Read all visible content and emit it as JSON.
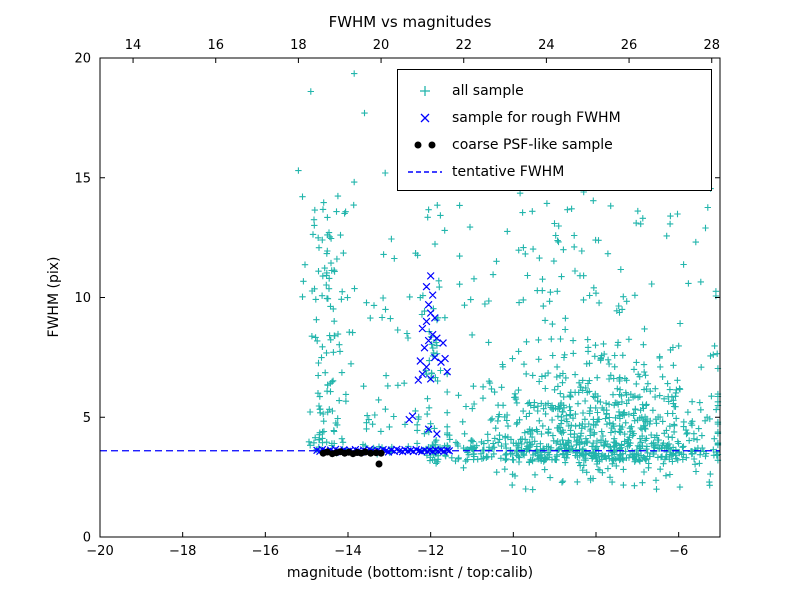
{
  "chart_data": {
    "type": "scatter",
    "title": "FWHM vs magnitudes",
    "xlabel": "magnitude (bottom:isnt / top:calib)",
    "ylabel": "FWHM (pix)",
    "xlim": [
      -20,
      -5
    ],
    "ylim": [
      0,
      20
    ],
    "x_ticks": [
      -20,
      -18,
      -16,
      -14,
      -12,
      -10,
      -8,
      -6
    ],
    "x_tick_labels": [
      "−20",
      "−18",
      "−16",
      "−14",
      "−12",
      "−10",
      "−8",
      "−6"
    ],
    "y_ticks": [
      0,
      5,
      10,
      15,
      20
    ],
    "y_tick_labels": [
      "0",
      "5",
      "10",
      "15",
      "20"
    ],
    "top_axis": {
      "lim": [
        13.2,
        28.2
      ],
      "ticks": [
        14,
        16,
        18,
        20,
        22,
        24,
        26,
        28
      ],
      "tick_labels": [
        "14",
        "16",
        "18",
        "20",
        "22",
        "24",
        "26",
        "28"
      ]
    },
    "legend_position": "upper right",
    "grid": false,
    "series": [
      {
        "name": "all sample",
        "marker": "plus",
        "color": "#22b5ac",
        "clusters": [
          {
            "n": 75,
            "x": {
              "type": "gauss",
              "mean": -14.55,
              "sd": 0.18,
              "min": -15.05,
              "max": -14.05
            },
            "y": {
              "type": "uniform",
              "min": 3.9,
              "max": 14.3,
              "bias": 1.4
            }
          },
          {
            "n": 22,
            "x": {
              "type": "gauss",
              "mean": -14.25,
              "sd": 0.5,
              "min": -15.1,
              "max": -13.2
            },
            "y": {
              "type": "uniform",
              "min": 9.0,
              "max": 15.4,
              "bias": 1.0
            }
          },
          {
            "n": 55,
            "x": {
              "type": "uniform",
              "min": -14.6,
              "max": -12.25
            },
            "y": {
              "type": "uniform",
              "min": 4.4,
              "max": 12.5,
              "bias": 1.7
            }
          },
          {
            "n": 45,
            "x": {
              "type": "gauss",
              "mean": -11.95,
              "sd": 0.14,
              "min": -12.4,
              "max": -11.55
            },
            "y": {
              "type": "uniform",
              "min": 4.2,
              "max": 14.3,
              "bias": 1.1
            }
          },
          {
            "n": 620,
            "x": {
              "type": "gauss",
              "mean": -8.0,
              "sd": 1.5,
              "min": -11.6,
              "max": -5.05
            },
            "y": {
              "type": "halfgauss",
              "base": 3.2,
              "sd": 2.3,
              "min": 2.1,
              "max": 9.9
            }
          },
          {
            "n": 85,
            "x": {
              "type": "gauss",
              "mean": -8.3,
              "sd": 1.8,
              "min": -11.3,
              "max": -5.1
            },
            "y": {
              "type": "uniform",
              "min": 9.5,
              "max": 15.2,
              "bias": 1.3
            }
          },
          {
            "n": 260,
            "x": {
              "type": "uniform",
              "min": -12.15,
              "max": -5.05
            },
            "y": {
              "type": "gauss",
              "mean": 3.55,
              "sd": 0.3,
              "min": 2.6,
              "max": 4.6
            }
          },
          {
            "n": 28,
            "x": {
              "type": "uniform",
              "min": -15.0,
              "max": -12.15
            },
            "y": {
              "type": "gauss",
              "mean": 3.75,
              "sd": 0.2,
              "min": 3.3,
              "max": 4.3
            }
          },
          {
            "n": 35,
            "x": {
              "type": "uniform",
              "min": -10.6,
              "max": -5.1
            },
            "y": {
              "type": "uniform",
              "min": 1.9,
              "max": 2.9,
              "bias": 1.0
            }
          }
        ],
        "extra_points": [
          [
            -15.2,
            15.3
          ],
          [
            -14.9,
            18.6
          ],
          [
            -13.85,
            19.35
          ],
          [
            -13.6,
            17.7
          ],
          [
            -13.1,
            15.2
          ],
          [
            -12.5,
            15.9
          ],
          [
            -12.15,
            17.8
          ],
          [
            -10.3,
            14.6
          ],
          [
            -9.55,
            14.9
          ],
          [
            -8.2,
            15.6
          ],
          [
            -6.2,
            13.4
          ],
          [
            -5.35,
            12.9
          ]
        ]
      },
      {
        "name": "sample for rough FWHM",
        "marker": "x",
        "color": "#0000ff",
        "points": [
          [
            -14.75,
            3.62
          ],
          [
            -14.68,
            3.58
          ],
          [
            -14.62,
            3.65
          ],
          [
            -14.55,
            3.6
          ],
          [
            -14.5,
            3.55
          ],
          [
            -14.42,
            3.63
          ],
          [
            -14.35,
            3.58
          ],
          [
            -14.3,
            3.66
          ],
          [
            -14.22,
            3.6
          ],
          [
            -14.15,
            3.55
          ],
          [
            -14.1,
            3.64
          ],
          [
            -14.02,
            3.58
          ],
          [
            -13.95,
            3.62
          ],
          [
            -13.88,
            3.56
          ],
          [
            -13.82,
            3.65
          ],
          [
            -13.75,
            3.6
          ],
          [
            -13.68,
            3.55
          ],
          [
            -13.62,
            3.63
          ],
          [
            -13.55,
            3.58
          ],
          [
            -13.48,
            3.66
          ],
          [
            -13.42,
            3.6
          ],
          [
            -13.35,
            3.55
          ],
          [
            -13.28,
            3.62
          ],
          [
            -13.22,
            3.58
          ],
          [
            -13.15,
            3.65
          ],
          [
            -13.08,
            3.6
          ],
          [
            -13.02,
            3.55
          ],
          [
            -12.95,
            3.63
          ],
          [
            -12.88,
            3.58
          ],
          [
            -12.82,
            3.66
          ],
          [
            -12.75,
            3.6
          ],
          [
            -12.68,
            3.56
          ],
          [
            -12.62,
            3.64
          ],
          [
            -12.55,
            3.59
          ],
          [
            -12.48,
            3.62
          ],
          [
            -12.42,
            3.57
          ],
          [
            -12.35,
            3.65
          ],
          [
            -12.28,
            3.6
          ],
          [
            -12.22,
            3.56
          ],
          [
            -12.15,
            3.63
          ],
          [
            -12.08,
            3.58
          ],
          [
            -12.02,
            3.62
          ],
          [
            -11.95,
            3.57
          ],
          [
            -11.88,
            3.64
          ],
          [
            -11.82,
            3.59
          ],
          [
            -11.75,
            3.62
          ],
          [
            -11.68,
            3.57
          ],
          [
            -11.6,
            3.63
          ],
          [
            -11.55,
            3.6
          ],
          [
            -12.52,
            4.9
          ],
          [
            -12.44,
            5.05
          ],
          [
            -12.05,
            4.5
          ],
          [
            -11.85,
            4.3
          ],
          [
            -12.3,
            6.55
          ],
          [
            -12.2,
            6.8
          ],
          [
            -12.1,
            7.1
          ],
          [
            -12.25,
            7.35
          ],
          [
            -12.0,
            6.6
          ],
          [
            -11.9,
            7.5
          ],
          [
            -12.15,
            7.9
          ],
          [
            -12.05,
            8.2
          ],
          [
            -11.95,
            8.45
          ],
          [
            -12.2,
            8.7
          ],
          [
            -11.85,
            8.3
          ],
          [
            -12.1,
            9.0
          ],
          [
            -12.0,
            9.35
          ],
          [
            -11.9,
            9.15
          ],
          [
            -12.05,
            9.7
          ],
          [
            -11.95,
            10.1
          ],
          [
            -12.1,
            10.45
          ],
          [
            -12.0,
            10.9
          ],
          [
            -11.75,
            7.3
          ],
          [
            -11.65,
            7.45
          ],
          [
            -11.7,
            8.1
          ],
          [
            -11.6,
            6.9
          ]
        ]
      },
      {
        "name": "coarse PSF-like sample",
        "marker": "circle",
        "color": "#000000",
        "points": [
          [
            -14.6,
            3.5
          ],
          [
            -14.5,
            3.55
          ],
          [
            -14.38,
            3.48
          ],
          [
            -14.28,
            3.52
          ],
          [
            -14.18,
            3.56
          ],
          [
            -14.08,
            3.5
          ],
          [
            -13.98,
            3.54
          ],
          [
            -13.88,
            3.48
          ],
          [
            -13.78,
            3.53
          ],
          [
            -13.68,
            3.5
          ],
          [
            -13.58,
            3.55
          ],
          [
            -13.45,
            3.5
          ],
          [
            -13.32,
            3.52
          ],
          [
            -13.2,
            3.5
          ],
          [
            -13.25,
            3.05
          ]
        ]
      },
      {
        "name": "tentative FWHM",
        "marker": "dashed-line",
        "color": "#0000ff",
        "y": 3.6
      }
    ]
  },
  "colors": {
    "background": "#ffffff",
    "axis": "#000000",
    "all_sample": "#22b5ac",
    "rough_fwhm": "#0000ff",
    "coarse_psf": "#000000",
    "tentative_line": "#0000ff"
  }
}
